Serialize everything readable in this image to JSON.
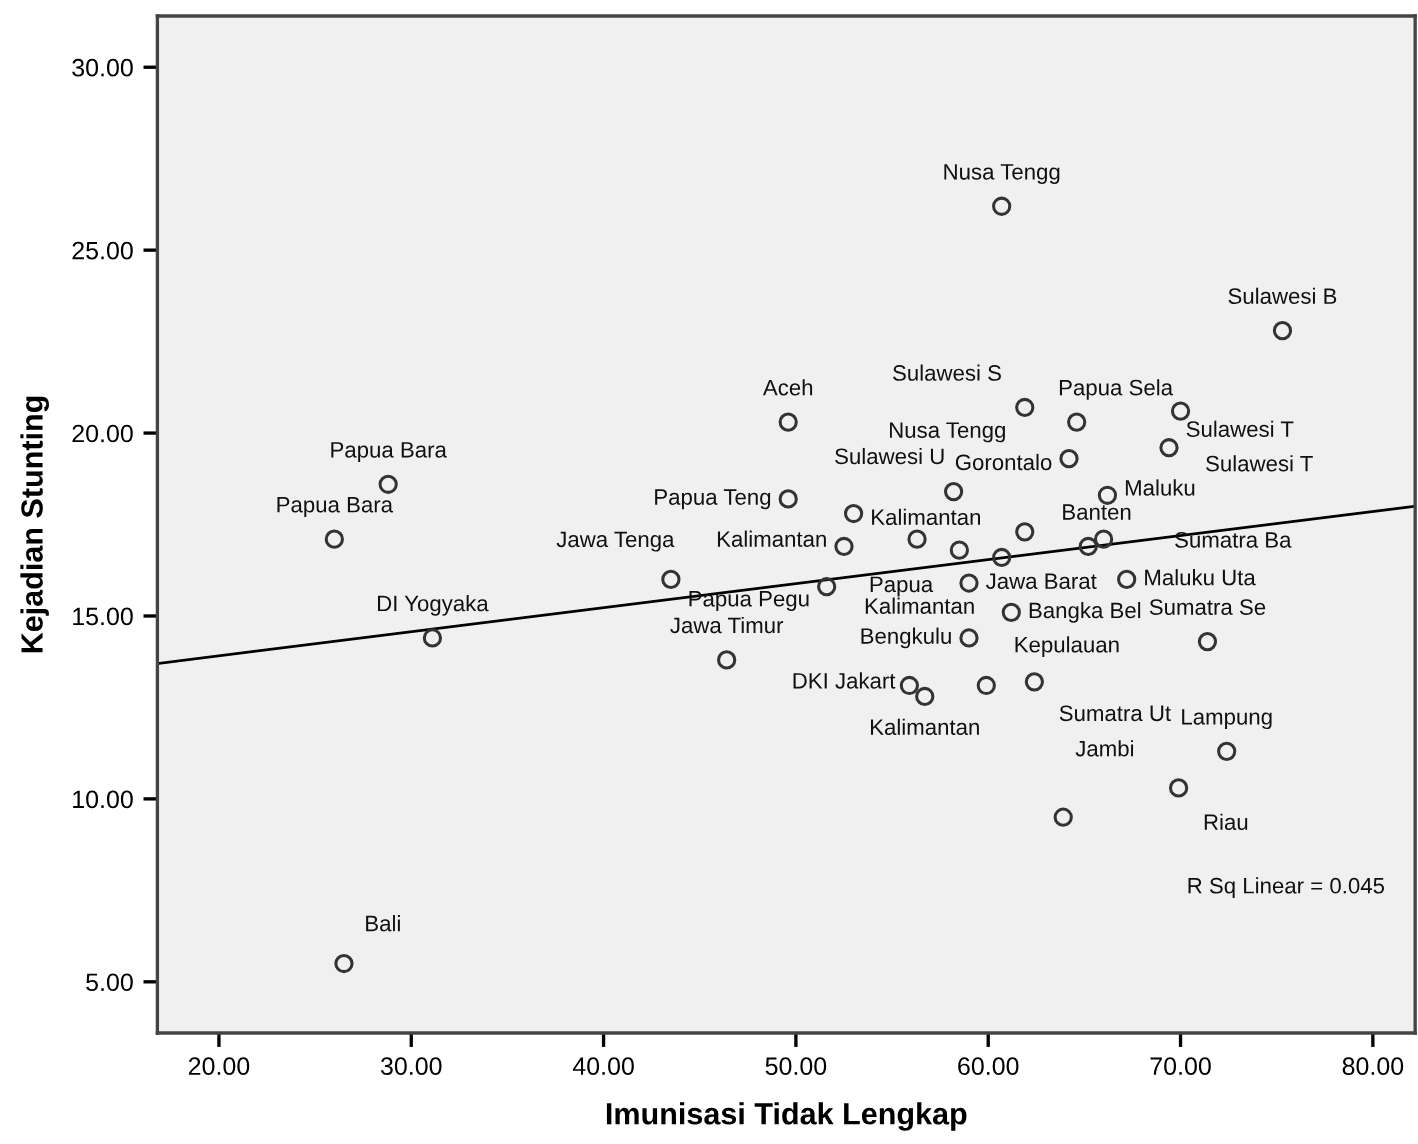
{
  "chart_data": {
    "type": "scatter",
    "xlabel": "Imunisasi Tidak Lengkap",
    "ylabel": "Kejadian Stunting",
    "xlim": [
      16.8,
      82.2
    ],
    "ylim": [
      3.6,
      31.4
    ],
    "xticks": [
      {
        "value": 20,
        "label": "20.00"
      },
      {
        "value": 30,
        "label": "30.00"
      },
      {
        "value": 40,
        "label": "40.00"
      },
      {
        "value": 50,
        "label": "50.00"
      },
      {
        "value": 60,
        "label": "60.00"
      },
      {
        "value": 70,
        "label": "70.00"
      },
      {
        "value": 80,
        "label": "80.00"
      }
    ],
    "yticks": [
      {
        "value": 5,
        "label": "5.00"
      },
      {
        "value": 10,
        "label": "10.00"
      },
      {
        "value": 15,
        "label": "15.00"
      },
      {
        "value": 20,
        "label": "20.00"
      },
      {
        "value": 25,
        "label": "25.00"
      },
      {
        "value": 30,
        "label": "30.00"
      }
    ],
    "grid": false,
    "legend": false,
    "marker": "circle",
    "series": [
      {
        "color": "#333333",
        "x": [
          26.5,
          28.8,
          26.0,
          31.1,
          43.5,
          51.6,
          46.4,
          52.5,
          49.6,
          49.6,
          60.7,
          75.3,
          61.9,
          64.6,
          70.0,
          69.4,
          64.2,
          58.2,
          66.2,
          53.0,
          58.5,
          61.9,
          60.7,
          65.2,
          66.0,
          59.0,
          67.2,
          61.2,
          59.0,
          71.4,
          55.9,
          56.7,
          59.9,
          62.4,
          72.4,
          69.9,
          63.9,
          56.3
        ],
        "values": [
          5.5,
          18.6,
          17.1,
          14.4,
          16.0,
          15.8,
          13.8,
          16.9,
          18.2,
          20.3,
          26.2,
          22.8,
          20.7,
          20.3,
          20.6,
          19.6,
          19.3,
          18.4,
          18.3,
          17.8,
          16.8,
          17.3,
          16.6,
          16.9,
          17.1,
          15.9,
          16.0,
          15.1,
          14.4,
          14.3,
          13.1,
          12.8,
          13.1,
          13.2,
          11.3,
          10.3,
          9.5,
          17.1
        ]
      },
      {
        "type": "line",
        "color": "#000000",
        "x": [
          16.8,
          82.2
        ],
        "values": [
          13.7,
          18.0
        ],
        "marker": "none",
        "line_style": "solid"
      }
    ],
    "annotations": [
      {
        "text": "Bali",
        "x": 26.5,
        "y": 5.5
      },
      {
        "text": "Papua Bara",
        "x": 28.8,
        "y": 18.6
      },
      {
        "text": "Papua Bara",
        "x": 26.0,
        "y": 17.1
      },
      {
        "text": "DI Yogyaka",
        "x": 31.1,
        "y": 14.4
      },
      {
        "text": "Jawa Tenga",
        "x": 43.5,
        "y": 16.0
      },
      {
        "text": "Papua Pegu",
        "x": 51.6,
        "y": 15.8
      },
      {
        "text": "Jawa Timur",
        "x": 46.4,
        "y": 13.8
      },
      {
        "text": "Kalimantan",
        "x": 52.5,
        "y": 16.9
      },
      {
        "text": "Papua Teng",
        "x": 49.6,
        "y": 18.2
      },
      {
        "text": "Aceh",
        "x": 49.6,
        "y": 20.3
      },
      {
        "text": "Nusa Tengg",
        "x": 60.7,
        "y": 26.2
      },
      {
        "text": "Sulawesi B",
        "x": 75.3,
        "y": 22.8
      },
      {
        "text": "Sulawesi S",
        "x": 61.9,
        "y": 20.7
      },
      {
        "text": "Papua Sela",
        "x": 64.6,
        "y": 20.3
      },
      {
        "text": "Sulawesi T",
        "x": 69.4,
        "y": 19.6
      },
      {
        "text": "Gorontalo",
        "x": 64.2,
        "y": 19.3
      },
      {
        "text": "Sulawesi U",
        "x": 58.2,
        "y": 18.4
      },
      {
        "text": "Maluku",
        "x": 66.2,
        "y": 18.3
      },
      {
        "text": "Kalimantan",
        "x": 53.0,
        "y": 17.8
      },
      {
        "text": "Papua",
        "x": 58.5,
        "y": 16.8
      },
      {
        "text": "Banten",
        "x": 65.2,
        "y": 16.9
      },
      {
        "text": "Jawa Barat",
        "x": 59.0,
        "y": 15.9
      },
      {
        "text": "Maluku Uta",
        "x": 67.2,
        "y": 16.0
      },
      {
        "text": "Bangka Bel",
        "x": 61.2,
        "y": 15.1
      },
      {
        "text": "Bengkulu",
        "x": 59.0,
        "y": 14.4
      },
      {
        "text": "Sumatra Se",
        "x": 71.4,
        "y": 14.3
      },
      {
        "text": "DKI Jakart",
        "x": 55.9,
        "y": 13.1
      },
      {
        "text": "Kalimantan",
        "x": 56.7,
        "y": 12.8
      },
      {
        "text": "Kepulauan",
        "x": 59.9,
        "y": 13.1
      },
      {
        "text": "Sumatra Ut",
        "x": 62.4,
        "y": 13.2
      },
      {
        "text": "Lampung",
        "x": 72.4,
        "y": 11.3
      },
      {
        "text": "Riau",
        "x": 69.9,
        "y": 10.3
      },
      {
        "text": "Jambi",
        "x": 63.9,
        "y": 9.5
      },
      "Sulawesi T",
      "Nusa Tengg",
      "Kalimantan",
      "Sumatra Ba",
      "R Sq Linear = 0.045"
    ]
  }
}
